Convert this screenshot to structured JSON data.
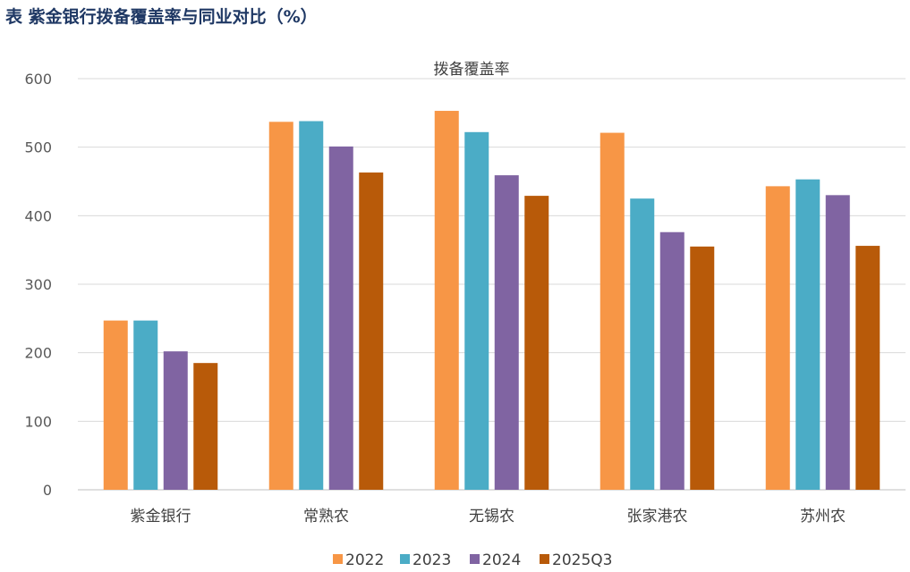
{
  "header": {
    "title": "表  紫金银行拨备覆盖率与同业对比（%）"
  },
  "chart_data": {
    "type": "bar",
    "title": "拨备覆盖率",
    "xlabel": "",
    "ylabel": "",
    "ylim": [
      0,
      600
    ],
    "yticks": [
      0,
      100,
      200,
      300,
      400,
      500,
      600
    ],
    "grid": true,
    "legend_position": "bottom",
    "categories": [
      "紫金银行",
      "常熟农",
      "无锡农",
      "张家港农",
      "苏州农"
    ],
    "series": [
      {
        "name": "2022",
        "color": "#F79646",
        "values": [
          247,
          537,
          553,
          521,
          443
        ]
      },
      {
        "name": "2023",
        "color": "#4BACC6",
        "values": [
          247,
          538,
          522,
          425,
          453
        ]
      },
      {
        "name": "2024",
        "color": "#8064A2",
        "values": [
          202,
          501,
          459,
          376,
          430
        ]
      },
      {
        "name": "2025Q3",
        "color": "#B85A09",
        "values": [
          185,
          463,
          429,
          355,
          356
        ]
      }
    ]
  }
}
